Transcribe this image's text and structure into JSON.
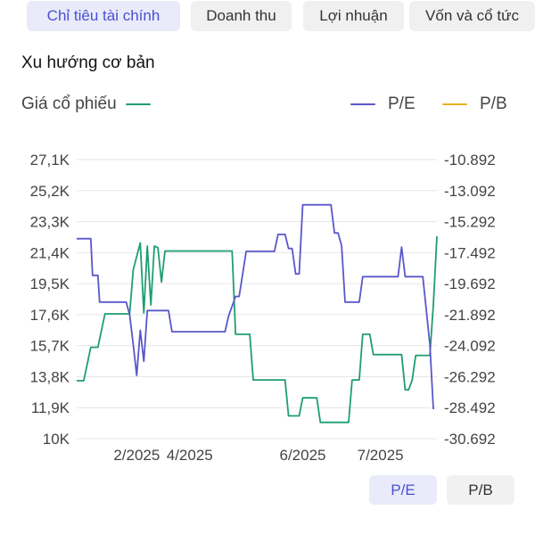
{
  "tabs": [
    {
      "label": "Chỉ tiêu tài chính",
      "active": true
    },
    {
      "label": "Doanh thu",
      "active": false
    },
    {
      "label": "Lợi nhuận",
      "active": false
    },
    {
      "label": "Vốn và cổ tức",
      "active": false
    }
  ],
  "section_title": "Xu hướng cơ bản",
  "legend": {
    "price": {
      "label": "Giá cổ phiếu",
      "color": "#1f9e6f"
    },
    "pe": {
      "label": "P/E",
      "color": "#5a57c9"
    },
    "pb": {
      "label": "P/B",
      "color": "#e8b21e"
    }
  },
  "toggles": [
    {
      "label": "P/E",
      "active": true
    },
    {
      "label": "P/B",
      "active": false
    }
  ],
  "chart_data": {
    "type": "line",
    "x_ticks": [
      "2/2025",
      "4/2025",
      "6/2025",
      "7/2025"
    ],
    "y_left_ticks": [
      "27,1K",
      "25,2K",
      "23,3K",
      "21,4K",
      "19,5K",
      "17,6K",
      "15,7K",
      "13,8K",
      "11,9K",
      "10K"
    ],
    "y_right_ticks": [
      "-10.892",
      "-13.092",
      "-15.292",
      "-17.492",
      "-19.692",
      "-21.892",
      "-24.092",
      "-26.292",
      "-28.492",
      "-30.692"
    ],
    "ylim_left": [
      10000,
      27100
    ],
    "ylim_right": [
      -30.692,
      -10.892
    ],
    "grid": true,
    "series": [
      {
        "name": "Giá cổ phiếu",
        "axis": "left",
        "color": "#1f9e6f",
        "points": [
          [
            0,
            13550
          ],
          [
            2,
            13550
          ],
          [
            4,
            15600
          ],
          [
            6,
            15600
          ],
          [
            8,
            17650
          ],
          [
            15,
            17650
          ],
          [
            16,
            20350
          ],
          [
            18,
            22000
          ],
          [
            19,
            17700
          ],
          [
            20,
            21800
          ],
          [
            21,
            18200
          ],
          [
            22,
            21800
          ],
          [
            23,
            21700
          ],
          [
            24,
            19600
          ],
          [
            25,
            21500
          ],
          [
            26,
            21500
          ],
          [
            27,
            21500
          ],
          [
            44,
            21500
          ],
          [
            45,
            16400
          ],
          [
            49,
            16400
          ],
          [
            50,
            13600
          ],
          [
            59,
            13600
          ],
          [
            60,
            11400
          ],
          [
            63,
            11400
          ],
          [
            64,
            12500
          ],
          [
            68,
            12500
          ],
          [
            69,
            11000
          ],
          [
            77,
            11000
          ],
          [
            78,
            13600
          ],
          [
            80,
            13600
          ],
          [
            81,
            16400
          ],
          [
            83,
            16400
          ],
          [
            84,
            15150
          ],
          [
            92,
            15150
          ],
          [
            93,
            13000
          ],
          [
            94,
            13000
          ],
          [
            95,
            13600
          ],
          [
            96,
            15100
          ],
          [
            100,
            15100
          ],
          [
            101,
            18200
          ],
          [
            102,
            22400
          ]
        ]
      },
      {
        "name": "P/E",
        "axis": "right",
        "color": "#5a57c9",
        "points": [
          [
            0,
            -16.5
          ],
          [
            4,
            -16.5
          ],
          [
            4.5,
            -19.1
          ],
          [
            6,
            -19.1
          ],
          [
            6.5,
            -21.0
          ],
          [
            14,
            -21.0
          ],
          [
            15,
            -21.9
          ],
          [
            16,
            -24.0
          ],
          [
            17,
            -26.2
          ],
          [
            18,
            -23.0
          ],
          [
            19,
            -25.2
          ],
          [
            20,
            -21.6
          ],
          [
            26,
            -21.6
          ],
          [
            27,
            -23.1
          ],
          [
            42,
            -23.1
          ],
          [
            43,
            -22.0
          ],
          [
            45,
            -20.6
          ],
          [
            46,
            -20.6
          ],
          [
            48,
            -17.4
          ],
          [
            56,
            -17.4
          ],
          [
            57,
            -16.2
          ],
          [
            59,
            -16.2
          ],
          [
            60,
            -17.2
          ],
          [
            61,
            -17.2
          ],
          [
            62,
            -19.0
          ],
          [
            63,
            -19.0
          ],
          [
            64,
            -14.1
          ],
          [
            72,
            -14.1
          ],
          [
            73,
            -16.1
          ],
          [
            74,
            -16.1
          ],
          [
            75,
            -17.0
          ],
          [
            76,
            -21.0
          ],
          [
            80,
            -21.0
          ],
          [
            81,
            -19.2
          ],
          [
            91,
            -19.2
          ],
          [
            92,
            -17.1
          ],
          [
            93,
            -19.2
          ],
          [
            98,
            -19.2
          ],
          [
            100,
            -24.0
          ],
          [
            101,
            -28.6
          ]
        ]
      },
      {
        "name": "P/B",
        "axis": "right",
        "color": "#e8b21e",
        "points": []
      }
    ]
  }
}
